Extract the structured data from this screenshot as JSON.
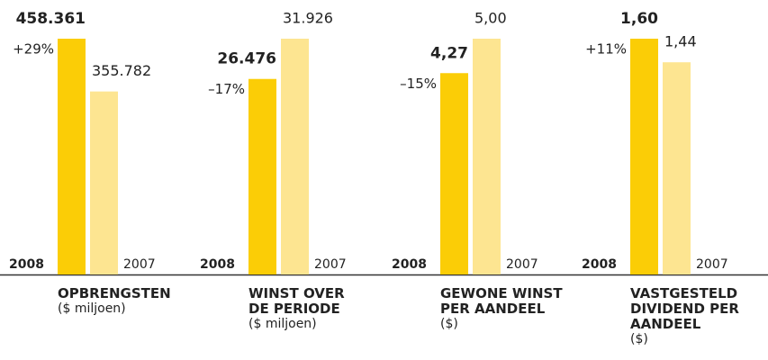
{
  "chart_data": [
    {
      "type": "bar",
      "title": "OPBRENGSTEN",
      "subtitle": "($ miljoen)",
      "categories": [
        "2008",
        "2007"
      ],
      "values": [
        458361,
        355782
      ],
      "value_labels": [
        "458.361",
        "355.782"
      ],
      "annotation": "+29%",
      "colors": [
        "#fbcd06",
        "#fde591"
      ]
    },
    {
      "type": "bar",
      "title": "WINST OVER\nDE PERIODE",
      "subtitle": "($ miljoen)",
      "categories": [
        "2008",
        "2007"
      ],
      "values": [
        26476,
        31926
      ],
      "value_labels": [
        "26.476",
        "31.926"
      ],
      "annotation": "–17%",
      "colors": [
        "#fbcd06",
        "#fde591"
      ]
    },
    {
      "type": "bar",
      "title": "GEWONE WINST\nPER AANDEEL",
      "subtitle": "($)",
      "categories": [
        "2008",
        "2007"
      ],
      "values": [
        4.27,
        5.0
      ],
      "value_labels": [
        "4,27",
        "5,00"
      ],
      "annotation": "–15%",
      "colors": [
        "#fbcd06",
        "#fde591"
      ]
    },
    {
      "type": "bar",
      "title": "VASTGESTELD\nDIVIDEND PER\nAANDEEL",
      "subtitle": "($)",
      "categories": [
        "2008",
        "2007"
      ],
      "values": [
        1.6,
        1.44
      ],
      "value_labels": [
        "1,60",
        "1,44"
      ],
      "annotation": "+11%",
      "colors": [
        "#fbcd06",
        "#fde591"
      ]
    }
  ]
}
